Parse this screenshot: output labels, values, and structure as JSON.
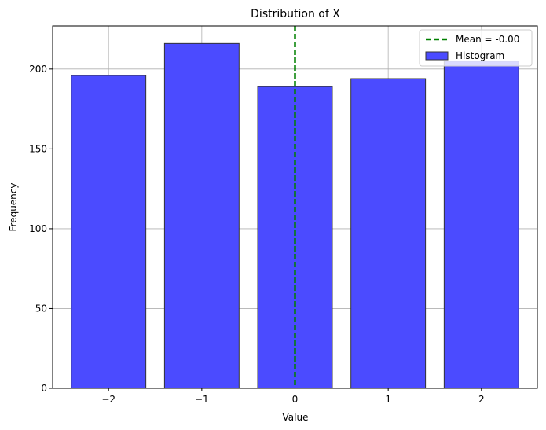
{
  "chart_data": {
    "type": "bar",
    "title": "Distribution of X",
    "xlabel": "Value",
    "ylabel": "Frequency",
    "categories": [
      -2,
      -1,
      0,
      1,
      2
    ],
    "x_tick_labels": [
      "−2",
      "−1",
      "0",
      "1",
      "2"
    ],
    "values": [
      196,
      216,
      189,
      194,
      205
    ],
    "bar_width": 0.8,
    "xlim": [
      -2.6,
      2.6
    ],
    "ylim": [
      0,
      227
    ],
    "y_ticks": [
      0,
      50,
      100,
      150,
      200
    ],
    "grid": true,
    "mean_line": {
      "x": 0.0,
      "label": "Mean = -0.00",
      "color": "#008000",
      "style": "dashed"
    },
    "histogram_label": "Histogram",
    "bar_color": "#4b4bff",
    "bar_edge_color": "#333333",
    "legend_position": "top-right"
  }
}
